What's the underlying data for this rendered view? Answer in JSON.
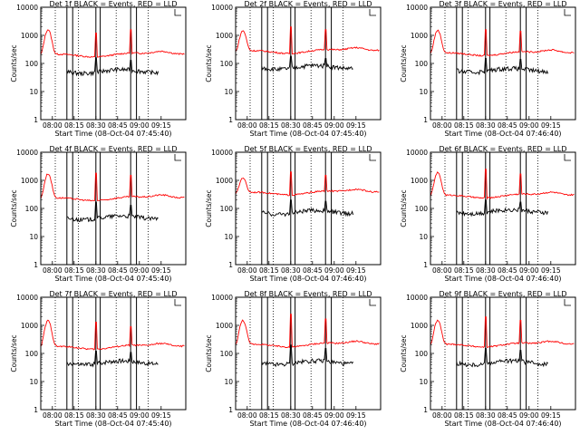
{
  "chart_data": [
    {
      "type": "line",
      "title": "Det 1f BLACK = Events, RED = LLD",
      "xlabel": "Start Time (08-Oct-04 07:45:40)",
      "ylabel": "Counts/sec",
      "scale": "log",
      "ylim": [
        1,
        10000
      ],
      "xlim": [
        0,
        100
      ],
      "x_ticks": [
        0,
        15,
        30,
        45,
        60,
        75
      ],
      "x_tick_labels": [
        "08:00",
        "08:15",
        "08:30",
        "08:45",
        "09:00",
        "09:15"
      ],
      "y_tick_labels": [
        "1",
        "10",
        "100",
        "1000",
        "10000"
      ],
      "vlines_solid": [
        18,
        22,
        38,
        41,
        62,
        66
      ],
      "vlines_dotted": [
        10,
        26,
        52,
        74
      ],
      "series": [
        {
          "color": "#ff0000",
          "base": 180,
          "hump": 1400,
          "spikes": [
            {
              "x": 38,
              "v": 1200
            },
            {
              "x": 62,
              "v": 1600
            }
          ]
        },
        {
          "color": "#000000",
          "base": 50,
          "start": 18,
          "spikes": [
            {
              "x": 38,
              "v": 160
            },
            {
              "x": 62,
              "v": 130
            }
          ]
        }
      ]
    },
    {
      "type": "line",
      "title": "Det 2f BLACK = Events, RED = LLD",
      "xlabel": "Start Time (08-Oct-04 07:45:40)",
      "ylabel": "Counts/sec",
      "scale": "log",
      "ylim": [
        1,
        10000
      ],
      "xlim": [
        0,
        100
      ],
      "x_ticks": [
        0,
        15,
        30,
        45,
        60,
        75
      ],
      "x_tick_labels": [
        "08:00",
        "08:15",
        "08:30",
        "08:45",
        "09:00",
        "09:15"
      ],
      "y_tick_labels": [
        "1",
        "10",
        "100",
        "1000",
        "10000"
      ],
      "vlines_solid": [
        18,
        22,
        38,
        41,
        62,
        66
      ],
      "vlines_dotted": [
        10,
        26,
        52,
        74
      ],
      "series": [
        {
          "color": "#ff0000",
          "base": 240,
          "hump": 1200,
          "spikes": [
            {
              "x": 38,
              "v": 2000
            },
            {
              "x": 62,
              "v": 1600
            }
          ]
        },
        {
          "color": "#000000",
          "base": 70,
          "start": 18,
          "spikes": [
            {
              "x": 38,
              "v": 180
            },
            {
              "x": 62,
              "v": 150
            }
          ]
        }
      ]
    },
    {
      "type": "line",
      "title": "Det 3f BLACK = Events, RED = LLD",
      "xlabel": "Start Time (08-Oct-04 07:46:40)",
      "ylabel": "Counts/sec",
      "scale": "log",
      "ylim": [
        1,
        10000
      ],
      "xlim": [
        0,
        100
      ],
      "x_ticks": [
        0,
        15,
        30,
        45,
        60,
        75
      ],
      "x_tick_labels": [
        "08:00",
        "08:15",
        "08:30",
        "08:45",
        "09:00",
        "09:15"
      ],
      "y_tick_labels": [
        "1",
        "10",
        "100",
        "1000",
        "10000"
      ],
      "vlines_solid": [
        18,
        22,
        38,
        41,
        62,
        66
      ],
      "vlines_dotted": [
        10,
        26,
        52,
        74
      ],
      "series": [
        {
          "color": "#ff0000",
          "base": 200,
          "hump": 1300,
          "spikes": [
            {
              "x": 38,
              "v": 1600
            },
            {
              "x": 62,
              "v": 1400
            }
          ]
        },
        {
          "color": "#000000",
          "base": 55,
          "start": 18,
          "spikes": [
            {
              "x": 38,
              "v": 150
            },
            {
              "x": 62,
              "v": 140
            }
          ]
        }
      ]
    },
    {
      "type": "line",
      "title": "Det 4f BLACK = Events, RED = LLD",
      "xlabel": "Start Time (08-Oct-04 07:45:40)",
      "ylabel": "Counts/sec",
      "scale": "log",
      "ylim": [
        1,
        10000
      ],
      "xlim": [
        0,
        100
      ],
      "x_ticks": [
        0,
        15,
        30,
        45,
        60,
        75
      ],
      "x_tick_labels": [
        "08:00",
        "08:15",
        "08:30",
        "08:45",
        "09:00",
        "09:15"
      ],
      "y_tick_labels": [
        "1",
        "10",
        "100",
        "1000",
        "10000"
      ],
      "vlines_solid": [
        18,
        22,
        38,
        41,
        62,
        66
      ],
      "vlines_dotted": [
        10,
        26,
        52,
        74
      ],
      "series": [
        {
          "color": "#ff0000",
          "base": 200,
          "hump": 1500,
          "spikes": [
            {
              "x": 38,
              "v": 1800
            },
            {
              "x": 62,
              "v": 1500
            }
          ]
        },
        {
          "color": "#000000",
          "base": 45,
          "start": 18,
          "spikes": [
            {
              "x": 38,
              "v": 170
            },
            {
              "x": 62,
              "v": 130
            }
          ]
        }
      ]
    },
    {
      "type": "line",
      "title": "Det 5f BLACK = Events, RED = LLD",
      "xlabel": "Start Time (08-Oct-04 07:46:40)",
      "ylabel": "Counts/sec",
      "scale": "log",
      "ylim": [
        1,
        10000
      ],
      "xlim": [
        0,
        100
      ],
      "x_ticks": [
        0,
        15,
        30,
        45,
        60,
        75
      ],
      "x_tick_labels": [
        "08:00",
        "08:15",
        "08:30",
        "08:45",
        "09:00",
        "09:15"
      ],
      "y_tick_labels": [
        "1",
        "10",
        "100",
        "1000",
        "10000"
      ],
      "vlines_solid": [
        18,
        22,
        38,
        41,
        62,
        66
      ],
      "vlines_dotted": [
        10,
        26,
        52,
        74
      ],
      "series": [
        {
          "color": "#ff0000",
          "base": 320,
          "hump": 900,
          "spikes": [
            {
              "x": 38,
              "v": 2000
            },
            {
              "x": 62,
              "v": 1500
            }
          ]
        },
        {
          "color": "#000000",
          "base": 70,
          "start": 18,
          "spikes": [
            {
              "x": 38,
              "v": 200
            },
            {
              "x": 62,
              "v": 180
            }
          ]
        }
      ]
    },
    {
      "type": "line",
      "title": "Det 6f BLACK = Events, RED = LLD",
      "xlabel": "Start Time (08-Oct-04 07:46:40)",
      "ylabel": "Counts/sec",
      "scale": "log",
      "ylim": [
        1,
        10000
      ],
      "xlim": [
        0,
        100
      ],
      "x_ticks": [
        0,
        15,
        30,
        45,
        60,
        75
      ],
      "x_tick_labels": [
        "08:00",
        "08:15",
        "08:30",
        "08:45",
        "09:00",
        "09:15"
      ],
      "y_tick_labels": [
        "1",
        "10",
        "100",
        "1000",
        "10000"
      ],
      "vlines_solid": [
        18,
        22,
        38,
        41,
        62,
        66
      ],
      "vlines_dotted": [
        10,
        26,
        52,
        74
      ],
      "series": [
        {
          "color": "#ff0000",
          "base": 250,
          "hump": 1600,
          "spikes": [
            {
              "x": 38,
              "v": 2500
            },
            {
              "x": 62,
              "v": 1700
            }
          ]
        },
        {
          "color": "#000000",
          "base": 75,
          "start": 18,
          "spikes": [
            {
              "x": 38,
              "v": 200
            },
            {
              "x": 62,
              "v": 170
            }
          ]
        }
      ]
    },
    {
      "type": "line",
      "title": "Det 7f BLACK = Events, RED = LLD",
      "xlabel": "Start Time (08-Oct-04 07:45:40)",
      "ylabel": "Counts/sec",
      "scale": "log",
      "ylim": [
        1,
        10000
      ],
      "xlim": [
        0,
        100
      ],
      "x_ticks": [
        0,
        15,
        30,
        45,
        60,
        75
      ],
      "x_tick_labels": [
        "08:00",
        "08:15",
        "08:30",
        "08:45",
        "09:00",
        "09:15"
      ],
      "y_tick_labels": [
        "1",
        "10",
        "100",
        "1000",
        "10000"
      ],
      "vlines_solid": [
        18,
        22,
        38,
        41,
        62,
        66
      ],
      "vlines_dotted": [
        10,
        26,
        52,
        74
      ],
      "series": [
        {
          "color": "#ff0000",
          "base": 150,
          "hump": 1300,
          "spikes": [
            {
              "x": 38,
              "v": 1300
            },
            {
              "x": 62,
              "v": 900
            }
          ]
        },
        {
          "color": "#000000",
          "base": 45,
          "start": 18,
          "spikes": [
            {
              "x": 38,
              "v": 120
            },
            {
              "x": 62,
              "v": 110
            }
          ]
        }
      ]
    },
    {
      "type": "line",
      "title": "Det 8f BLACK = Events, RED = LLD",
      "xlabel": "Start Time (08-Oct-04 07:46:40)",
      "ylabel": "Counts/sec",
      "scale": "log",
      "ylim": [
        1,
        10000
      ],
      "xlim": [
        0,
        100
      ],
      "x_ticks": [
        0,
        15,
        30,
        45,
        60,
        75
      ],
      "x_tick_labels": [
        "08:00",
        "08:15",
        "08:30",
        "08:45",
        "09:00",
        "09:15"
      ],
      "y_tick_labels": [
        "1",
        "10",
        "100",
        "1000",
        "10000"
      ],
      "vlines_solid": [
        18,
        22,
        38,
        41,
        62,
        66
      ],
      "vlines_dotted": [
        10,
        26,
        52,
        74
      ],
      "series": [
        {
          "color": "#ff0000",
          "base": 180,
          "hump": 1300,
          "spikes": [
            {
              "x": 38,
              "v": 2500
            },
            {
              "x": 62,
              "v": 1700
            }
          ]
        },
        {
          "color": "#000000",
          "base": 45,
          "start": 18,
          "spikes": [
            {
              "x": 38,
              "v": 200
            },
            {
              "x": 62,
              "v": 150
            }
          ]
        }
      ]
    },
    {
      "type": "line",
      "title": "Det 9f BLACK = Events, RED = LLD",
      "xlabel": "Start Time (08-Oct-04 07:46:40)",
      "ylabel": "Counts/sec",
      "scale": "log",
      "ylim": [
        1,
        10000
      ],
      "xlim": [
        0,
        100
      ],
      "x_ticks": [
        0,
        15,
        30,
        45,
        60,
        75
      ],
      "x_tick_labels": [
        "08:00",
        "08:15",
        "08:30",
        "08:45",
        "09:00",
        "09:15"
      ],
      "y_tick_labels": [
        "1",
        "10",
        "100",
        "1000",
        "10000"
      ],
      "vlines_solid": [
        18,
        22,
        38,
        41,
        62,
        66
      ],
      "vlines_dotted": [
        10,
        26,
        52,
        74
      ],
      "series": [
        {
          "color": "#ff0000",
          "base": 180,
          "hump": 1300,
          "spikes": [
            {
              "x": 38,
              "v": 2000
            },
            {
              "x": 62,
              "v": 1500
            }
          ]
        },
        {
          "color": "#000000",
          "base": 45,
          "start": 18,
          "spikes": [
            {
              "x": 38,
              "v": 150
            },
            {
              "x": 62,
              "v": 130
            }
          ]
        }
      ]
    }
  ]
}
